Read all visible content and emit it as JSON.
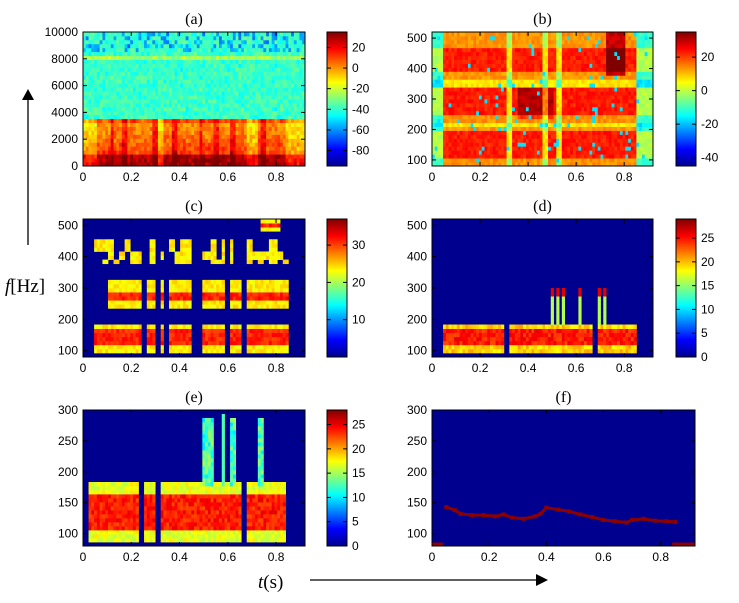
{
  "figure": {
    "xlabel_italic": "t",
    "xlabel_rest": "(s)",
    "ylabel_italic": "f",
    "ylabel_rest": "[Hz]"
  },
  "chart_data": [
    {
      "id": "a",
      "type": "heatmap",
      "title": "(a)",
      "x_ticks": [
        "0",
        "0.2",
        "0.4",
        "0.6",
        "0.8"
      ],
      "y_ticks": [
        "0",
        "2000",
        "4000",
        "6000",
        "8000",
        "10000"
      ],
      "xlim": [
        0,
        0.92
      ],
      "ylim": [
        0,
        10000
      ],
      "colorbar": {
        "range": [
          -95,
          35
        ],
        "ticks": [
          "20",
          "0",
          "-20",
          "-40",
          "-60",
          "-80"
        ]
      },
      "content": "speech spectrogram in dB; strong energy below 3500 Hz with harmonics, lower level above"
    },
    {
      "id": "b",
      "type": "heatmap",
      "title": "(b)",
      "x_ticks": [
        "0",
        "0.2",
        "0.4",
        "0.6",
        "0.8"
      ],
      "y_ticks": [
        "100",
        "200",
        "300",
        "400",
        "500"
      ],
      "xlim": [
        0,
        0.92
      ],
      "ylim": [
        80,
        520
      ],
      "colorbar": {
        "range": [
          -45,
          35
        ],
        "ticks": [
          "20",
          "0",
          "-20",
          "-40"
        ]
      },
      "content": "low-frequency spectrogram detail, high energy bands near 150, 290 and 420 Hz"
    },
    {
      "id": "c",
      "type": "heatmap",
      "title": "(c)",
      "x_ticks": [
        "0",
        "0.2",
        "0.4",
        "0.6",
        "0.8"
      ],
      "y_ticks": [
        "100",
        "200",
        "300",
        "400",
        "500"
      ],
      "xlim": [
        0,
        0.92
      ],
      "ylim": [
        80,
        520
      ],
      "colorbar": {
        "range": [
          0,
          37
        ],
        "ticks": [
          "30",
          "20",
          "10"
        ]
      },
      "content": "thresholded spectrogram, masked regions shown as background"
    },
    {
      "id": "d",
      "type": "heatmap",
      "title": "(d)",
      "x_ticks": [
        "0",
        "0.2",
        "0.4",
        "0.6",
        "0.8"
      ],
      "y_ticks": [
        "100",
        "200",
        "300",
        "400",
        "500"
      ],
      "xlim": [
        0,
        0.92
      ],
      "ylim": [
        80,
        520
      ],
      "colorbar": {
        "range": [
          0,
          29
        ],
        "ticks": [
          "25",
          "20",
          "15",
          "10",
          "5",
          "0"
        ]
      },
      "content": "band near 100-200 Hz retained, narrow spikes near 0.5-0.75 s up to 300 Hz"
    },
    {
      "id": "e",
      "type": "heatmap",
      "title": "(e)",
      "x_ticks": [
        "0",
        "0.2",
        "0.4",
        "0.6",
        "0.8"
      ],
      "y_ticks": [
        "100",
        "150",
        "200",
        "250",
        "300"
      ],
      "xlim": [
        0,
        0.92
      ],
      "ylim": [
        80,
        300
      ],
      "colorbar": {
        "range": [
          0,
          28
        ],
        "ticks": [
          "25",
          "20",
          "15",
          "10",
          "5",
          "0"
        ]
      },
      "content": "pitch-region energy 100-190 Hz with vertical spikes near 0.5-0.75 s"
    },
    {
      "id": "f",
      "type": "line",
      "title": "(f)",
      "x_ticks": [
        "0",
        "0.2",
        "0.4",
        "0.6",
        "0.8"
      ],
      "y_ticks": [
        "100",
        "150",
        "200",
        "250",
        "300"
      ],
      "xlim": [
        0,
        0.92
      ],
      "ylim": [
        80,
        300
      ],
      "x": [
        0.05,
        0.08,
        0.1,
        0.14,
        0.18,
        0.22,
        0.25,
        0.28,
        0.32,
        0.36,
        0.38,
        0.4,
        0.44,
        0.48,
        0.52,
        0.56,
        0.6,
        0.64,
        0.68,
        0.7,
        0.74,
        0.78,
        0.82,
        0.85
      ],
      "y": [
        143,
        138,
        132,
        130,
        130,
        128,
        131,
        126,
        124,
        128,
        132,
        142,
        139,
        136,
        131,
        127,
        122,
        120,
        118,
        122,
        124,
        121,
        120,
        119
      ],
      "baseline_segments": [
        [
          0,
          0.04
        ],
        [
          0.84,
          0.92
        ]
      ]
    }
  ]
}
